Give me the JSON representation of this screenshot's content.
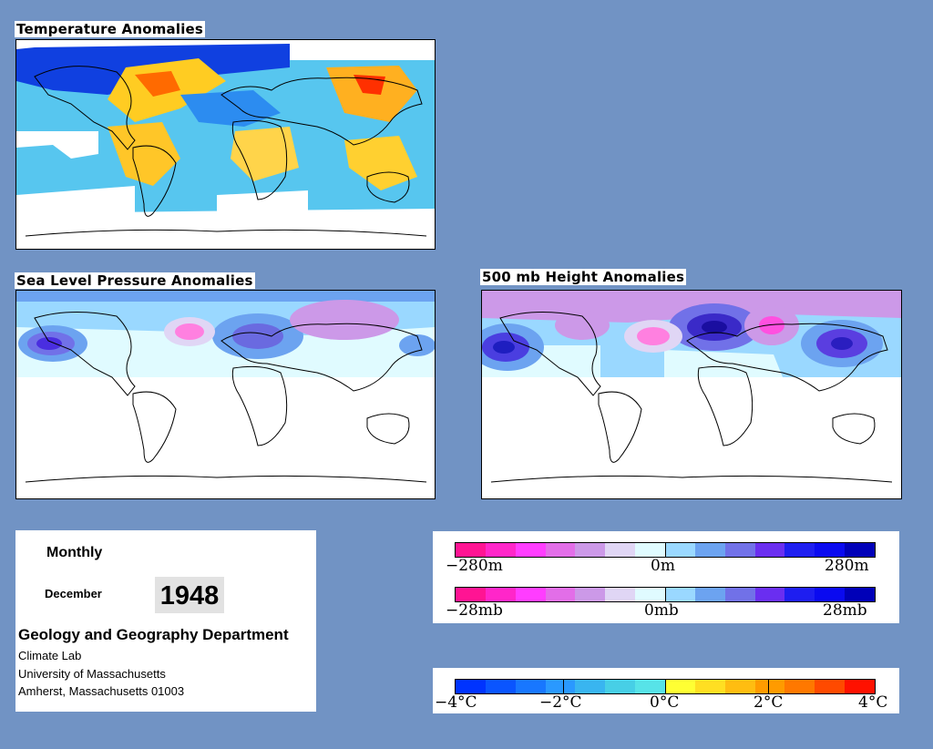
{
  "panels": {
    "temperature": {
      "title": "Temperature Anomalies"
    },
    "slp": {
      "title": "Sea Level Pressure Anomalies"
    },
    "height": {
      "title": "500 mb Height Anomalies"
    }
  },
  "info": {
    "period": "Monthly",
    "month": "December",
    "year": "1948",
    "department": "Geology and Geography Department",
    "lines": [
      "Climate Lab",
      "University of Massachusetts",
      "Amherst, Massachusetts 01003"
    ]
  },
  "legends": {
    "height": {
      "labels": [
        "−280m",
        "0m",
        "280m"
      ]
    },
    "pressure": {
      "labels": [
        "−28mb",
        "0mb",
        "28mb"
      ]
    },
    "temperature": {
      "labels": [
        "−4°C",
        "−2°C",
        "0°C",
        "2°C",
        "4°C"
      ]
    }
  },
  "colors": {
    "background": "#7193c4",
    "anomaly_scale": [
      "#ff1493",
      "#ff26c9",
      "#ff3dff",
      "#e26ee8",
      "#cc99e8",
      "#e0d6f5",
      "#e0fbff",
      "#9ad8ff",
      "#6ca3f0",
      "#7171e8",
      "#6a2ef0",
      "#1e1ef0",
      "#0a0af0",
      "#0000b8"
    ],
    "temperature_scale": [
      "#0033ff",
      "#0a55ff",
      "#1877ff",
      "#2a99ff",
      "#39b5f0",
      "#47cfe6",
      "#57e3e8",
      "#ffff33",
      "#ffdf22",
      "#ffbd11",
      "#ff9b00",
      "#ff7800",
      "#ff4a00",
      "#ff1100"
    ]
  }
}
